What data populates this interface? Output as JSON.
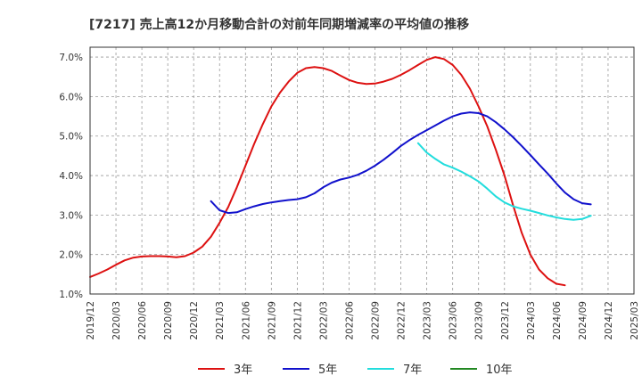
{
  "chart_data": {
    "type": "line",
    "title": "[7217]  売上高12か月移動合計の対前年同期増減率の平均値の推移",
    "xlabel": "",
    "ylabel": "",
    "ylim": [
      1.0,
      7.25
    ],
    "yticks": [
      1.0,
      2.0,
      3.0,
      4.0,
      5.0,
      6.0,
      7.0
    ],
    "ytick_labels": [
      "1.0%",
      "2.0%",
      "3.0%",
      "4.0%",
      "5.0%",
      "6.0%",
      "7.0%"
    ],
    "x_start": "2019/12",
    "x_end": "2025/03",
    "x_tick_labels": [
      "2019/12",
      "2020/03",
      "2020/06",
      "2020/09",
      "2020/12",
      "2021/03",
      "2021/06",
      "2021/09",
      "2021/12",
      "2022/03",
      "2022/06",
      "2022/09",
      "2022/12",
      "2023/03",
      "2023/06",
      "2023/09",
      "2023/12",
      "2024/03",
      "2024/06",
      "2024/09",
      "2024/12",
      "2025/03"
    ],
    "grid": true,
    "legend_position": "bottom",
    "series": [
      {
        "name": "3年",
        "color": "#dd1111",
        "start": "2019/12",
        "values": [
          1.43,
          1.52,
          1.62,
          1.74,
          1.85,
          1.92,
          1.95,
          1.96,
          1.96,
          1.95,
          1.93,
          1.96,
          2.05,
          2.2,
          2.45,
          2.8,
          3.2,
          3.7,
          4.25,
          4.8,
          5.3,
          5.75,
          6.1,
          6.38,
          6.6,
          6.72,
          6.75,
          6.72,
          6.65,
          6.53,
          6.42,
          6.35,
          6.32,
          6.33,
          6.38,
          6.45,
          6.55,
          6.67,
          6.8,
          6.93,
          7.0,
          6.95,
          6.8,
          6.55,
          6.2,
          5.75,
          5.25,
          4.65,
          4.0,
          3.25,
          2.55,
          2.0,
          1.62,
          1.4,
          1.26,
          1.22
        ]
      },
      {
        "name": "5年",
        "color": "#1111cc",
        "start": "2021/02",
        "values": [
          3.35,
          3.12,
          3.05,
          3.07,
          3.15,
          3.22,
          3.28,
          3.32,
          3.35,
          3.38,
          3.4,
          3.45,
          3.55,
          3.7,
          3.82,
          3.9,
          3.95,
          4.02,
          4.12,
          4.25,
          4.4,
          4.57,
          4.75,
          4.9,
          5.03,
          5.15,
          5.27,
          5.39,
          5.5,
          5.57,
          5.6,
          5.58,
          5.5,
          5.35,
          5.17,
          4.97,
          4.75,
          4.52,
          4.28,
          4.05,
          3.8,
          3.57,
          3.4,
          3.3,
          3.27
        ]
      },
      {
        "name": "7年",
        "color": "#22dddd",
        "start": "2023/02",
        "values": [
          4.82,
          4.58,
          4.42,
          4.28,
          4.2,
          4.1,
          3.98,
          3.85,
          3.67,
          3.47,
          3.32,
          3.22,
          3.16,
          3.11,
          3.05,
          2.99,
          2.94,
          2.9,
          2.88,
          2.9,
          2.98
        ]
      },
      {
        "name": "10年",
        "color": "#228822",
        "start": "2024/12",
        "values": []
      }
    ]
  }
}
